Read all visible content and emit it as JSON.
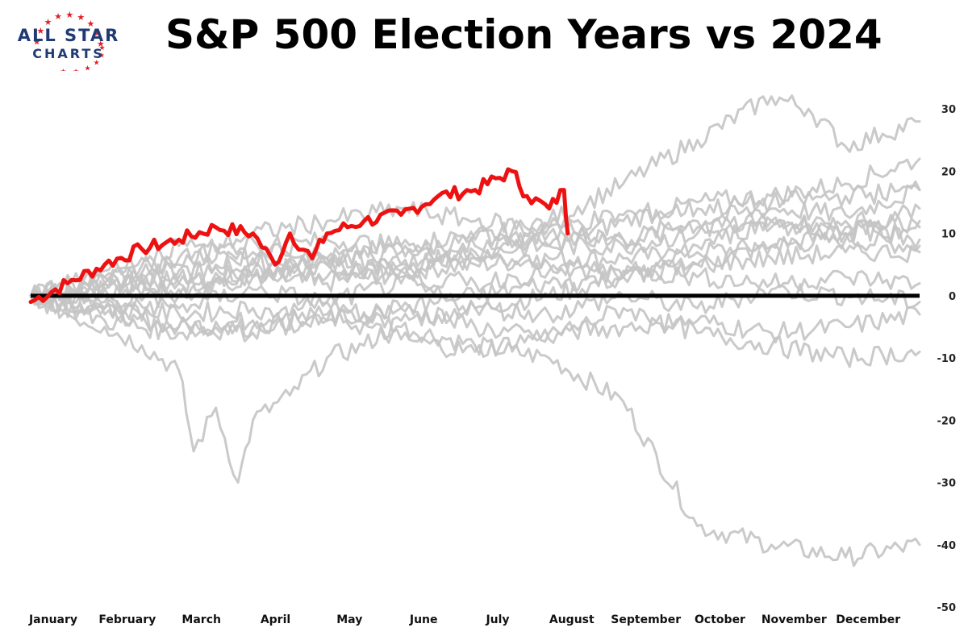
{
  "logo": {
    "line1": "ALL STAR",
    "line2": "CHARTS",
    "star_color": "#e02027",
    "text_color": "#1f3b73"
  },
  "chart_data": {
    "type": "line",
    "title": "S&P 500 Election Years vs 2024",
    "xlabel": "",
    "ylabel": "",
    "x_ticks": [
      "January",
      "February",
      "March",
      "April",
      "May",
      "June",
      "July",
      "August",
      "September",
      "October",
      "November",
      "December"
    ],
    "y_ticks": [
      30,
      20,
      10,
      0,
      -10,
      -20,
      -30,
      -40,
      -50
    ],
    "ylim": [
      -50,
      33
    ],
    "xlim": [
      0,
      12
    ],
    "grid": false,
    "legend": "none",
    "colors": {
      "highlight": "#ee1111",
      "history": "#c4c4c4",
      "zero_line": "#000000"
    },
    "series": [
      {
        "highlight": true,
        "x": [
          0,
          0.5,
          1,
          1.5,
          2,
          2.5,
          3,
          3.3,
          3.5,
          3.8,
          4,
          4.5,
          5,
          5.5,
          6,
          6.5,
          6.7,
          7,
          7.2,
          7.25
        ],
        "y": [
          -1,
          2,
          5,
          7.5,
          9,
          11,
          10,
          5,
          10,
          6,
          10,
          12,
          13,
          16,
          17,
          20,
          16,
          14,
          17,
          10
        ]
      },
      {
        "x": [
          0,
          1,
          2,
          3,
          4,
          5,
          6,
          7,
          8,
          9,
          10,
          11,
          12
        ],
        "y": [
          0,
          1,
          2,
          3,
          2,
          4,
          5,
          6,
          6,
          7,
          8,
          9,
          8
        ]
      },
      {
        "x": [
          0,
          1,
          2,
          3,
          4,
          5,
          6,
          7,
          8,
          9,
          10,
          11,
          12
        ],
        "y": [
          0,
          -2,
          -5,
          -4,
          -1,
          -5,
          -8,
          -10,
          -17,
          -37,
          -40,
          -42,
          -40
        ]
      },
      {
        "x": [
          0,
          0.5,
          1,
          1.5,
          2,
          2.2,
          2.5,
          2.8,
          3,
          3.5,
          4,
          4.5,
          5,
          6,
          7,
          8,
          9,
          10,
          11,
          12
        ],
        "y": [
          0,
          -3,
          -5,
          -8,
          -12,
          -25,
          -18,
          -30,
          -20,
          -16,
          -10,
          -8,
          -4,
          -2,
          0,
          3,
          5,
          8,
          10,
          11
        ]
      },
      {
        "x": [
          0,
          1,
          2,
          3,
          4,
          5,
          6,
          7,
          8,
          9,
          10,
          10.5,
          11,
          11.5,
          12
        ],
        "y": [
          0,
          2,
          4,
          5,
          6,
          7,
          9,
          12,
          18,
          25,
          32,
          30,
          24,
          26,
          28
        ]
      },
      {
        "x": [
          0,
          1,
          2,
          3,
          4,
          5,
          6,
          7,
          8,
          9,
          10,
          11,
          12
        ],
        "y": [
          0,
          3,
          5,
          9,
          6,
          8,
          10,
          8,
          12,
          15,
          16,
          18,
          22
        ]
      },
      {
        "x": [
          0,
          1,
          2,
          3,
          4,
          5,
          6,
          7,
          8,
          9,
          10,
          11,
          12
        ],
        "y": [
          0,
          2,
          3,
          7,
          9,
          8,
          6,
          11,
          9,
          12,
          14,
          13,
          17
        ]
      },
      {
        "x": [
          0,
          1,
          2,
          3,
          4,
          5,
          6,
          7,
          8,
          9,
          10,
          11,
          12
        ],
        "y": [
          0,
          -4,
          -6,
          -5,
          -3,
          -7,
          -9,
          -6,
          -5,
          -4,
          -6,
          -5,
          -3
        ]
      },
      {
        "x": [
          0,
          1,
          2,
          3,
          4,
          5,
          6,
          7,
          8,
          9,
          10,
          11,
          12
        ],
        "y": [
          0,
          1,
          2,
          4,
          3,
          5,
          7,
          8,
          8,
          10,
          11,
          12,
          12
        ]
      },
      {
        "x": [
          0,
          1,
          2,
          3,
          4,
          5,
          6,
          7,
          8,
          9,
          10,
          11,
          12
        ],
        "y": [
          0,
          -2,
          -3,
          -2,
          -4,
          -2,
          -5,
          -7,
          -2,
          -6,
          -8,
          -10,
          -9
        ]
      },
      {
        "x": [
          0,
          1,
          2,
          3,
          4,
          5,
          6,
          7,
          8,
          9,
          10,
          11,
          12
        ],
        "y": [
          0,
          3,
          6,
          10,
          12,
          14,
          12,
          11,
          13,
          14,
          15,
          16,
          17
        ]
      },
      {
        "x": [
          0,
          1,
          2,
          3,
          4,
          5,
          6,
          7,
          8,
          9,
          10,
          11,
          12
        ],
        "y": [
          0,
          -3,
          -5,
          -6,
          -4,
          -2,
          0,
          2,
          3,
          5,
          6,
          7,
          7
        ]
      },
      {
        "x": [
          0,
          1,
          2,
          3,
          4,
          5,
          6,
          7,
          8,
          9,
          10,
          11,
          12
        ],
        "y": [
          0,
          2,
          1,
          3,
          5,
          4,
          6,
          5,
          4,
          3,
          2,
          3,
          2
        ]
      },
      {
        "x": [
          0,
          1,
          2,
          3,
          4,
          5,
          6,
          7,
          8,
          9,
          10,
          11,
          12
        ],
        "y": [
          0,
          -1,
          -2,
          1,
          -1,
          2,
          -2,
          -3,
          0,
          -2,
          1,
          0,
          -1
        ]
      },
      {
        "x": [
          0,
          1,
          2,
          3,
          4,
          5,
          6,
          7,
          8,
          9,
          10,
          11,
          12
        ],
        "y": [
          0,
          4,
          8,
          6,
          5,
          3,
          2,
          4,
          3,
          8,
          12,
          10,
          14
        ]
      },
      {
        "x": [
          0,
          1,
          2,
          3,
          4,
          5,
          6,
          7,
          8,
          9,
          10,
          11,
          12
        ],
        "y": [
          0,
          -2,
          0,
          3,
          6,
          5,
          8,
          10,
          9,
          11,
          12,
          11,
          9
        ]
      }
    ]
  }
}
